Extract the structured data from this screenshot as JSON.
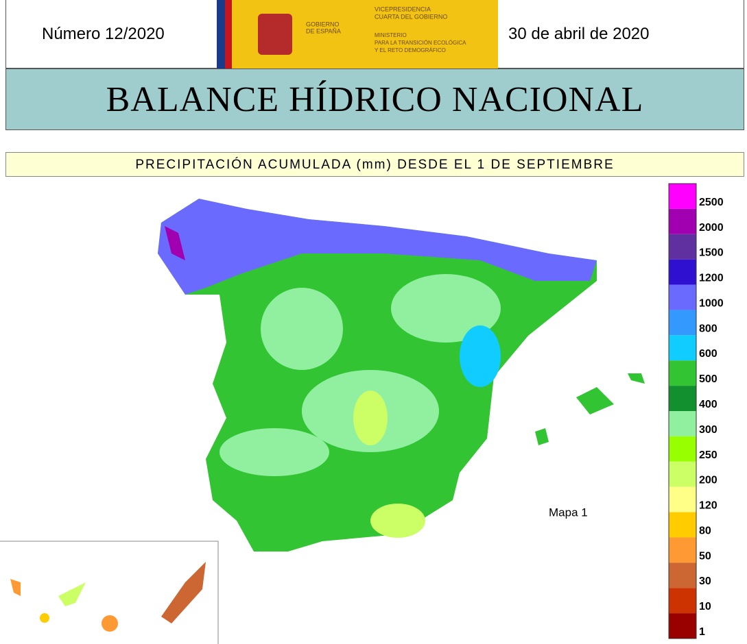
{
  "header": {
    "number": "Número 12/2020",
    "date": "30 de abril de 2020",
    "logo": {
      "gov": [
        "GOBIERNO",
        "DE ESPAÑA"
      ],
      "vice": [
        "VICEPRESIDENCIA",
        "CUARTA DEL GOBIERNO"
      ],
      "ministry": [
        "MINISTERIO",
        "PARA LA TRANSICIÓN ECOLÓGICA",
        "Y EL RETO DEMOGRÁFICO"
      ]
    }
  },
  "title": "BALANCE HÍDRICO NACIONAL",
  "subtitle": "PRECIPITACIÓN ACUMULADA (mm) DESDE EL 1 DE SEPTIEMBRE",
  "map": {
    "label": "Mapa 1"
  },
  "legend": [
    {
      "label": 2500,
      "color": "#ff00ff"
    },
    {
      "label": 2000,
      "color": "#a000b0"
    },
    {
      "label": 1500,
      "color": "#6030a0"
    },
    {
      "label": 1200,
      "color": "#3010d0"
    },
    {
      "label": 1000,
      "color": "#6a6aff"
    },
    {
      "label": 800,
      "color": "#3399ff"
    },
    {
      "label": 600,
      "color": "#10ccff"
    },
    {
      "label": 500,
      "color": "#33c433"
    },
    {
      "label": 400,
      "color": "#12902f"
    },
    {
      "label": 300,
      "color": "#90f0a0"
    },
    {
      "label": 250,
      "color": "#98ff00"
    },
    {
      "label": 200,
      "color": "#ccff66"
    },
    {
      "label": 120,
      "color": "#ffff88"
    },
    {
      "label": 80,
      "color": "#ffcc00"
    },
    {
      "label": 50,
      "color": "#ff9933"
    },
    {
      "label": 30,
      "color": "#cc6633"
    },
    {
      "label": 10,
      "color": "#cc3300"
    },
    {
      "label": 1,
      "color": "#990000"
    }
  ]
}
